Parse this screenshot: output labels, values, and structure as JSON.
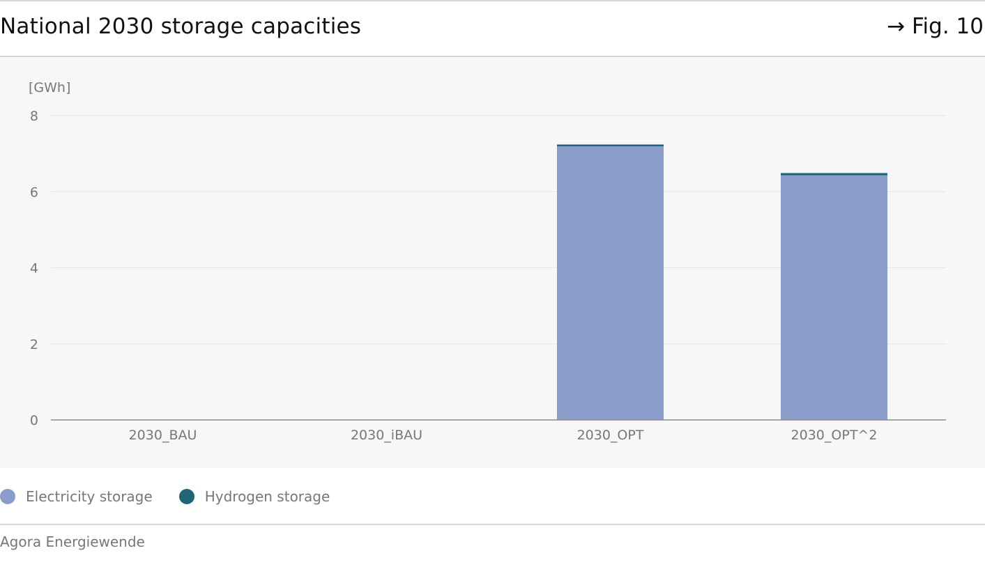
{
  "header": {
    "title": "National 2030 storage capacities",
    "figure_ref": "→ Fig. 10"
  },
  "legend": {
    "items": [
      {
        "label": "Electricity storage",
        "color": "#8a9dca"
      },
      {
        "label": "Hydrogen storage",
        "color": "#1f6577"
      }
    ]
  },
  "footer": {
    "source": "Agora Energiewende"
  },
  "chart_data": {
    "type": "bar",
    "stacked": true,
    "title": "National 2030 storage capacities",
    "ylabel": "[GWh]",
    "xlabel": "",
    "categories": [
      "2030_BAU",
      "2030_iBAU",
      "2030_OPT",
      "2030_OPT^2"
    ],
    "series": [
      {
        "name": "Electricity storage",
        "color": "#8a9dca",
        "values": [
          0,
          0,
          7.2,
          6.43
        ]
      },
      {
        "name": "Hydrogen storage",
        "color": "#1f6577",
        "values": [
          0,
          0,
          0.04,
          0.06
        ]
      }
    ],
    "ylim": [
      0,
      8
    ],
    "yticks": [
      0,
      2,
      4,
      6,
      8
    ],
    "grid": true,
    "legend_position": "bottom-left"
  }
}
